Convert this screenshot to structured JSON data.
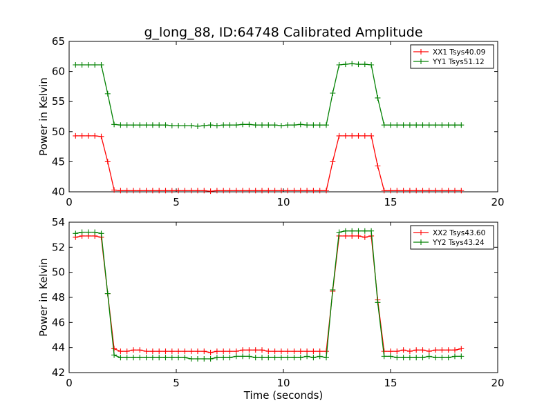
{
  "figure": {
    "title": "g_long_88, ID:64748 Calibrated Amplitude"
  },
  "chart_data": [
    {
      "type": "line",
      "ylabel": "Power in Kelvin",
      "xlabel": "",
      "xlim": [
        0,
        20
      ],
      "ylim": [
        40,
        65
      ],
      "xticks": [
        "0",
        "5",
        "10",
        "15",
        "20"
      ],
      "yticks": [
        "40",
        "45",
        "50",
        "55",
        "60",
        "65"
      ],
      "legend_position": "top-right",
      "x": [
        0.3,
        0.6,
        0.9,
        1.2,
        1.5,
        1.8,
        2.1,
        2.4,
        2.7,
        3.0,
        3.3,
        3.6,
        3.9,
        4.2,
        4.5,
        4.8,
        5.1,
        5.4,
        5.7,
        6.0,
        6.3,
        6.6,
        6.9,
        7.2,
        7.5,
        7.8,
        8.1,
        8.4,
        8.7,
        9.0,
        9.3,
        9.6,
        9.9,
        10.2,
        10.5,
        10.8,
        11.1,
        11.4,
        11.7,
        12.0,
        12.3,
        12.6,
        12.9,
        13.2,
        13.5,
        13.8,
        14.1,
        14.4,
        14.7,
        15.0,
        15.3,
        15.6,
        15.9,
        16.2,
        16.5,
        16.8,
        17.1,
        17.4,
        17.7,
        18.0,
        18.3
      ],
      "series": [
        {
          "name": "XX1 Tsys40.09",
          "color": "#ff0000",
          "values": [
            49.3,
            49.3,
            49.3,
            49.3,
            49.2,
            45.0,
            40.3,
            40.2,
            40.2,
            40.2,
            40.2,
            40.2,
            40.2,
            40.2,
            40.2,
            40.2,
            40.2,
            40.2,
            40.2,
            40.2,
            40.2,
            40.1,
            40.2,
            40.2,
            40.2,
            40.2,
            40.2,
            40.2,
            40.2,
            40.2,
            40.2,
            40.2,
            40.2,
            40.2,
            40.2,
            40.2,
            40.2,
            40.2,
            40.2,
            40.2,
            45.0,
            49.3,
            49.3,
            49.3,
            49.3,
            49.3,
            49.3,
            44.3,
            40.2,
            40.2,
            40.2,
            40.2,
            40.2,
            40.2,
            40.2,
            40.2,
            40.2,
            40.2,
            40.2,
            40.2,
            40.2
          ]
        },
        {
          "name": "YY1 Tsys51.12",
          "color": "#008000",
          "values": [
            61.1,
            61.1,
            61.1,
            61.1,
            61.1,
            56.3,
            51.2,
            51.1,
            51.1,
            51.1,
            51.1,
            51.1,
            51.1,
            51.1,
            51.1,
            51.0,
            51.0,
            51.0,
            51.0,
            50.9,
            51.0,
            51.1,
            51.0,
            51.1,
            51.1,
            51.1,
            51.2,
            51.2,
            51.1,
            51.1,
            51.1,
            51.1,
            51.0,
            51.1,
            51.1,
            51.2,
            51.1,
            51.1,
            51.1,
            51.1,
            56.4,
            61.1,
            61.2,
            61.3,
            61.2,
            61.2,
            61.1,
            55.6,
            51.1,
            51.1,
            51.1,
            51.1,
            51.1,
            51.1,
            51.1,
            51.1,
            51.1,
            51.1,
            51.1,
            51.1,
            51.1
          ]
        }
      ]
    },
    {
      "type": "line",
      "ylabel": "Power in Kelvin",
      "xlabel": "Time (seconds)",
      "xlim": [
        0,
        20
      ],
      "ylim": [
        42,
        54
      ],
      "xticks": [
        "0",
        "5",
        "10",
        "15",
        "20"
      ],
      "yticks": [
        "42",
        "44",
        "46",
        "48",
        "50",
        "52",
        "54"
      ],
      "legend_position": "top-right",
      "x": [
        0.3,
        0.6,
        0.9,
        1.2,
        1.5,
        1.8,
        2.1,
        2.4,
        2.7,
        3.0,
        3.3,
        3.6,
        3.9,
        4.2,
        4.5,
        4.8,
        5.1,
        5.4,
        5.7,
        6.0,
        6.3,
        6.6,
        6.9,
        7.2,
        7.5,
        7.8,
        8.1,
        8.4,
        8.7,
        9.0,
        9.3,
        9.6,
        9.9,
        10.2,
        10.5,
        10.8,
        11.1,
        11.4,
        11.7,
        12.0,
        12.3,
        12.6,
        12.9,
        13.2,
        13.5,
        13.8,
        14.1,
        14.4,
        14.7,
        15.0,
        15.3,
        15.6,
        15.9,
        16.2,
        16.5,
        16.8,
        17.1,
        17.4,
        17.7,
        18.0,
        18.3
      ],
      "series": [
        {
          "name": "XX2 Tsys43.60",
          "color": "#ff0000",
          "values": [
            52.8,
            52.9,
            52.9,
            52.9,
            52.8,
            48.3,
            43.9,
            43.7,
            43.7,
            43.8,
            43.8,
            43.7,
            43.7,
            43.7,
            43.7,
            43.7,
            43.7,
            43.7,
            43.7,
            43.7,
            43.7,
            43.6,
            43.7,
            43.7,
            43.7,
            43.7,
            43.8,
            43.8,
            43.8,
            43.8,
            43.7,
            43.7,
            43.7,
            43.7,
            43.7,
            43.7,
            43.7,
            43.7,
            43.7,
            43.7,
            48.5,
            52.9,
            52.9,
            52.9,
            52.9,
            52.8,
            52.9,
            47.8,
            43.7,
            43.7,
            43.7,
            43.8,
            43.7,
            43.8,
            43.8,
            43.7,
            43.8,
            43.8,
            43.8,
            43.8,
            43.9
          ]
        },
        {
          "name": "YY2 Tsys43.24",
          "color": "#008000",
          "values": [
            53.1,
            53.2,
            53.2,
            53.2,
            53.1,
            48.3,
            43.4,
            43.2,
            43.2,
            43.2,
            43.2,
            43.2,
            43.2,
            43.2,
            43.2,
            43.2,
            43.2,
            43.2,
            43.1,
            43.1,
            43.1,
            43.1,
            43.2,
            43.2,
            43.2,
            43.3,
            43.3,
            43.3,
            43.2,
            43.2,
            43.2,
            43.2,
            43.2,
            43.2,
            43.2,
            43.2,
            43.3,
            43.2,
            43.3,
            43.2,
            48.6,
            53.2,
            53.3,
            53.3,
            53.3,
            53.3,
            53.3,
            47.6,
            43.3,
            43.3,
            43.2,
            43.2,
            43.2,
            43.2,
            43.2,
            43.3,
            43.2,
            43.2,
            43.2,
            43.3,
            43.3
          ]
        }
      ]
    }
  ]
}
